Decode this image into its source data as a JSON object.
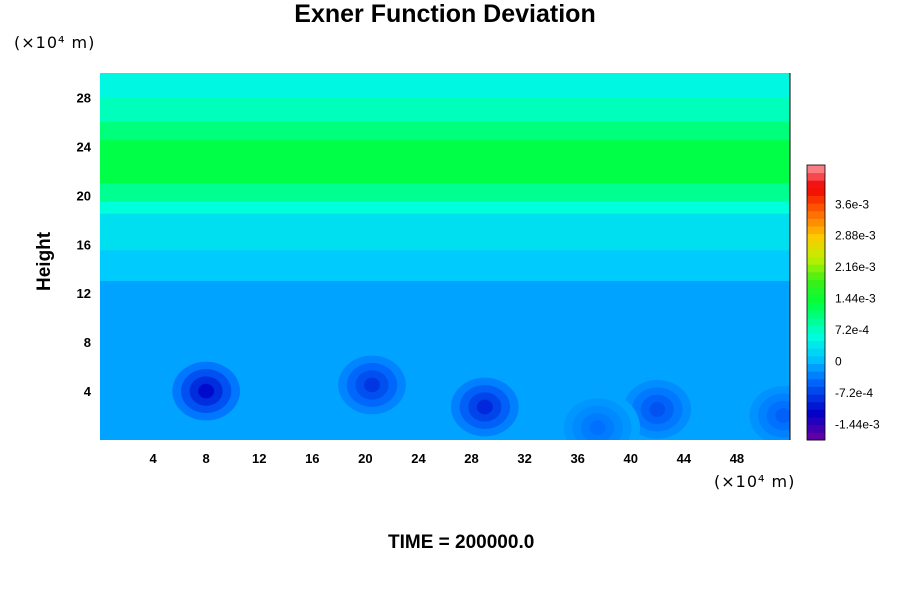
{
  "chart_data": {
    "type": "heatmap",
    "title": "Exner Function Deviation",
    "ylabel": "Height",
    "x_unit": "(×10⁴ m)",
    "y_unit": "(×10⁴ m)",
    "footer": "TIME = 200000.0",
    "xlim": [
      0,
      52
    ],
    "ylim": [
      0,
      30
    ],
    "xticks": [
      "4",
      "8",
      "12",
      "16",
      "20",
      "24",
      "28",
      "32",
      "36",
      "40",
      "44",
      "48"
    ],
    "yticks": [
      "4",
      "8",
      "12",
      "16",
      "20",
      "24",
      "28"
    ],
    "colorbar": {
      "range": [
        -0.0018,
        0.0045
      ],
      "tick_labels": [
        "3.6e-3",
        "2.88e-3",
        "2.16e-3",
        "1.44e-3",
        "7.2e-4",
        "0",
        "-7.2e-4",
        "-1.44e-3"
      ],
      "tick_values": [
        0.0036,
        0.00288,
        0.00216,
        0.00144,
        0.00072,
        0,
        -0.00072,
        -0.00144
      ]
    },
    "bands": [
      {
        "y0": 28.0,
        "y1": 30.0,
        "value": 0.00052
      },
      {
        "y0": 26.0,
        "y1": 28.0,
        "value": 0.00075
      },
      {
        "y0": 24.5,
        "y1": 26.0,
        "value": 0.00105
      },
      {
        "y0": 21.0,
        "y1": 24.5,
        "value": 0.0013
      },
      {
        "y0": 19.5,
        "y1": 21.0,
        "value": 0.00095
      },
      {
        "y0": 18.5,
        "y1": 19.5,
        "value": 0.0006
      },
      {
        "y0": 15.5,
        "y1": 18.5,
        "value": 0.0003
      },
      {
        "y0": 13.0,
        "y1": 15.5,
        "value": 0.00012
      },
      {
        "y0": 0.0,
        "y1": 13.0,
        "value": -0.00012
      }
    ],
    "lows": [
      {
        "x": 8.0,
        "y": 4.0,
        "value": -0.0011
      },
      {
        "x": 20.5,
        "y": 4.5,
        "value": -0.0008
      },
      {
        "x": 29.0,
        "y": 2.7,
        "value": -0.0009
      },
      {
        "x": 42.0,
        "y": 2.5,
        "value": -0.0006
      },
      {
        "x": 51.5,
        "y": 2.0,
        "value": -0.0005
      },
      {
        "x": 37.5,
        "y": 1.0,
        "value": -0.0004
      }
    ]
  }
}
